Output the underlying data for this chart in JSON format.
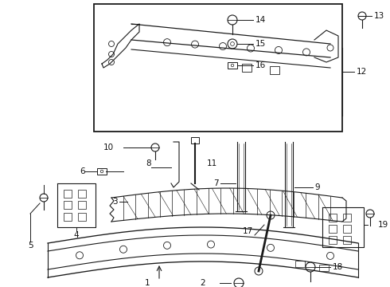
{
  "bg_color": "#ffffff",
  "line_color": "#1a1a1a",
  "text_color": "#111111",
  "fig_width": 4.9,
  "fig_height": 3.6,
  "dpi": 100
}
